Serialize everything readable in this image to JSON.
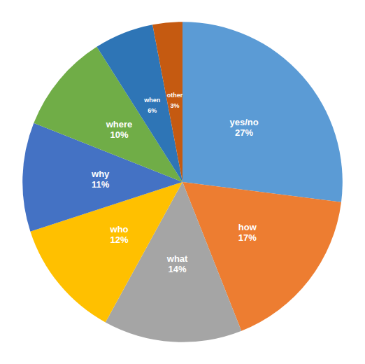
{
  "chart_data": {
    "type": "pie",
    "categories": [
      "yes/no",
      "how",
      "what",
      "who",
      "why",
      "where",
      "when",
      "other"
    ],
    "values": [
      27,
      17,
      14,
      12,
      11,
      10,
      6,
      3
    ],
    "value_labels": [
      "27%",
      "17%",
      "14%",
      "12%",
      "11%",
      "10%",
      "6%",
      "3%"
    ],
    "colors": [
      "#5B9BD5",
      "#ED7D31",
      "#A5A5A5",
      "#FFC000",
      "#4472C4",
      "#70AD47",
      "#2E75B6",
      "#C55A11"
    ],
    "data_labels": true
  }
}
